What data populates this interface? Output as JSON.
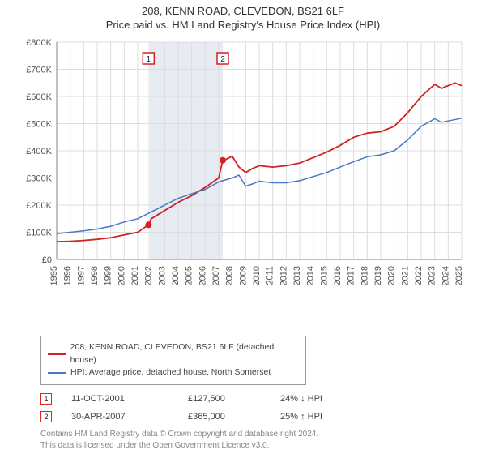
{
  "title_line1": "208, KENN ROAD, CLEVEDON, BS21 6LF",
  "title_line2": "Price paid vs. HM Land Registry's House Price Index (HPI)",
  "chart": {
    "type": "line",
    "background_color": "#ffffff",
    "grid_color": "#dddddd",
    "axis_color": "#999999",
    "band_fill": "#e7ecf2",
    "band_start_year": 2001.8,
    "band_end_year": 2007.3,
    "xlim": [
      1995,
      2025
    ],
    "ylim": [
      0,
      800000
    ],
    "ytick_step": 100000,
    "y_ticks": [
      "£0",
      "£100K",
      "£200K",
      "£300K",
      "£400K",
      "£500K",
      "£600K",
      "£700K",
      "£800K"
    ],
    "x_ticks": [
      1995,
      1996,
      1997,
      1998,
      1999,
      2000,
      2001,
      2002,
      2003,
      2004,
      2005,
      2006,
      2007,
      2008,
      2009,
      2010,
      2011,
      2012,
      2013,
      2014,
      2015,
      2016,
      2017,
      2018,
      2019,
      2020,
      2021,
      2022,
      2023,
      2024,
      2025
    ],
    "label_fontsize": 11,
    "series": [
      {
        "key": "price_paid",
        "label": "208, KENN ROAD, CLEVEDON, BS21 6LF (detached house)",
        "color": "#d22222",
        "line_width": 1.8,
        "data": [
          [
            1995,
            65000
          ],
          [
            1996,
            67000
          ],
          [
            1997,
            70000
          ],
          [
            1998,
            74000
          ],
          [
            1999,
            80000
          ],
          [
            2000,
            90000
          ],
          [
            2001,
            100000
          ],
          [
            2001.8,
            127500
          ],
          [
            2002,
            150000
          ],
          [
            2003,
            180000
          ],
          [
            2004,
            210000
          ],
          [
            2005,
            235000
          ],
          [
            2006,
            265000
          ],
          [
            2007,
            300000
          ],
          [
            2007.3,
            365000
          ],
          [
            2007.6,
            370000
          ],
          [
            2008,
            380000
          ],
          [
            2008.5,
            340000
          ],
          [
            2009,
            320000
          ],
          [
            2009.5,
            335000
          ],
          [
            2010,
            345000
          ],
          [
            2011,
            340000
          ],
          [
            2012,
            345000
          ],
          [
            2013,
            355000
          ],
          [
            2014,
            375000
          ],
          [
            2015,
            395000
          ],
          [
            2016,
            420000
          ],
          [
            2017,
            450000
          ],
          [
            2018,
            465000
          ],
          [
            2019,
            470000
          ],
          [
            2020,
            490000
          ],
          [
            2021,
            540000
          ],
          [
            2022,
            600000
          ],
          [
            2023,
            645000
          ],
          [
            2023.5,
            630000
          ],
          [
            2024,
            640000
          ],
          [
            2024.5,
            650000
          ],
          [
            2025,
            640000
          ]
        ]
      },
      {
        "key": "hpi",
        "label": "HPI: Average price, detached house, North Somerset",
        "color": "#4a77c4",
        "line_width": 1.5,
        "data": [
          [
            1995,
            95000
          ],
          [
            1996,
            100000
          ],
          [
            1997,
            105000
          ],
          [
            1998,
            112000
          ],
          [
            1999,
            122000
          ],
          [
            2000,
            138000
          ],
          [
            2001,
            150000
          ],
          [
            2002,
            175000
          ],
          [
            2003,
            200000
          ],
          [
            2004,
            225000
          ],
          [
            2005,
            242000
          ],
          [
            2006,
            258000
          ],
          [
            2007,
            285000
          ],
          [
            2007.3,
            290000
          ],
          [
            2008,
            300000
          ],
          [
            2008.5,
            310000
          ],
          [
            2009,
            270000
          ],
          [
            2009.5,
            278000
          ],
          [
            2010,
            288000
          ],
          [
            2011,
            282000
          ],
          [
            2012,
            282000
          ],
          [
            2013,
            290000
          ],
          [
            2014,
            305000
          ],
          [
            2015,
            320000
          ],
          [
            2016,
            340000
          ],
          [
            2017,
            360000
          ],
          [
            2018,
            378000
          ],
          [
            2019,
            385000
          ],
          [
            2020,
            400000
          ],
          [
            2021,
            440000
          ],
          [
            2022,
            490000
          ],
          [
            2023,
            518000
          ],
          [
            2023.5,
            505000
          ],
          [
            2024,
            510000
          ],
          [
            2025,
            520000
          ]
        ]
      }
    ],
    "event_markers": [
      {
        "n": "1",
        "year": 2001.8,
        "value": 127500,
        "color": "#d22222",
        "box_color": "#d22222"
      },
      {
        "n": "2",
        "year": 2007.3,
        "value": 365000,
        "color": "#d22222",
        "box_color": "#d22222"
      }
    ]
  },
  "legend": {
    "items": [
      {
        "color": "#d22222",
        "label": "208, KENN ROAD, CLEVEDON, BS21 6LF (detached house)"
      },
      {
        "color": "#4a77c4",
        "label": "HPI: Average price, detached house, North Somerset"
      }
    ]
  },
  "events": [
    {
      "n": "1",
      "date": "11-OCT-2001",
      "price": "£127,500",
      "delta": "24% ↓ HPI"
    },
    {
      "n": "2",
      "date": "30-APR-2007",
      "price": "£365,000",
      "delta": "25% ↑ HPI"
    }
  ],
  "footnote_line1": "Contains HM Land Registry data © Crown copyright and database right 2024.",
  "footnote_line2": "This data is licensed under the Open Government Licence v3.0."
}
